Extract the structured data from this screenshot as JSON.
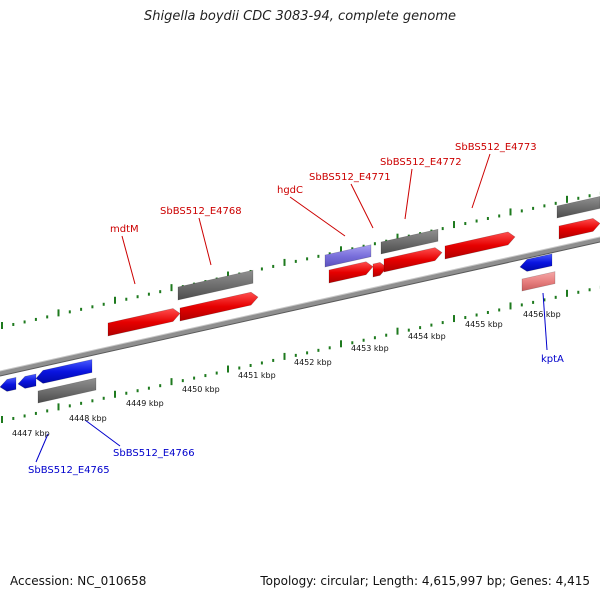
{
  "title": "Shigella boydii CDC 3083-94, complete genome",
  "footer": {
    "accession": "Accession: NC_010658",
    "summary": "Topology: circular; Length: 4,615,997 bp; Genes: 4,415"
  },
  "colors": {
    "forward_gene": "#e60000",
    "reverse_gene": "#0a14e0",
    "other_feature": "#6f6f6f",
    "pseudogene_forward": "#e88080",
    "pseudogene_reverse": "#7a70dc",
    "backbone": "#8a8a8a",
    "tick": "#1e7a1e",
    "red_label": "#cc0000",
    "blue_label": "#0000cc"
  },
  "scale": {
    "unit": "kbp",
    "ticks": [
      {
        "kbp": 4447,
        "label": "4447 kbp"
      },
      {
        "kbp": 4448,
        "label": "4448 kbp"
      },
      {
        "kbp": 4449,
        "label": "4449 kbp"
      },
      {
        "kbp": 4450,
        "label": "4450 kbp"
      },
      {
        "kbp": 4451,
        "label": "4451 kbp"
      },
      {
        "kbp": 4452,
        "label": "4452 kbp"
      },
      {
        "kbp": 4453,
        "label": "4453 kbp"
      },
      {
        "kbp": 4454,
        "label": "4454 kbp"
      },
      {
        "kbp": 4455,
        "label": "4455 kbp"
      },
      {
        "kbp": 4456,
        "label": "4456 kbp"
      }
    ]
  },
  "gene_labels": [
    {
      "text": "mdtM",
      "color": "red"
    },
    {
      "text": "SbBS512_E4768",
      "color": "red"
    },
    {
      "text": "hgdC",
      "color": "red"
    },
    {
      "text": "SbBS512_E4771",
      "color": "red"
    },
    {
      "text": "SbBS512_E4772",
      "color": "red"
    },
    {
      "text": "SbBS512_E4773",
      "color": "red"
    },
    {
      "text": "kptA",
      "color": "blue"
    },
    {
      "text": "SbBS512_E4766",
      "color": "blue"
    },
    {
      "text": "SbBS512_E4765",
      "color": "blue"
    }
  ]
}
